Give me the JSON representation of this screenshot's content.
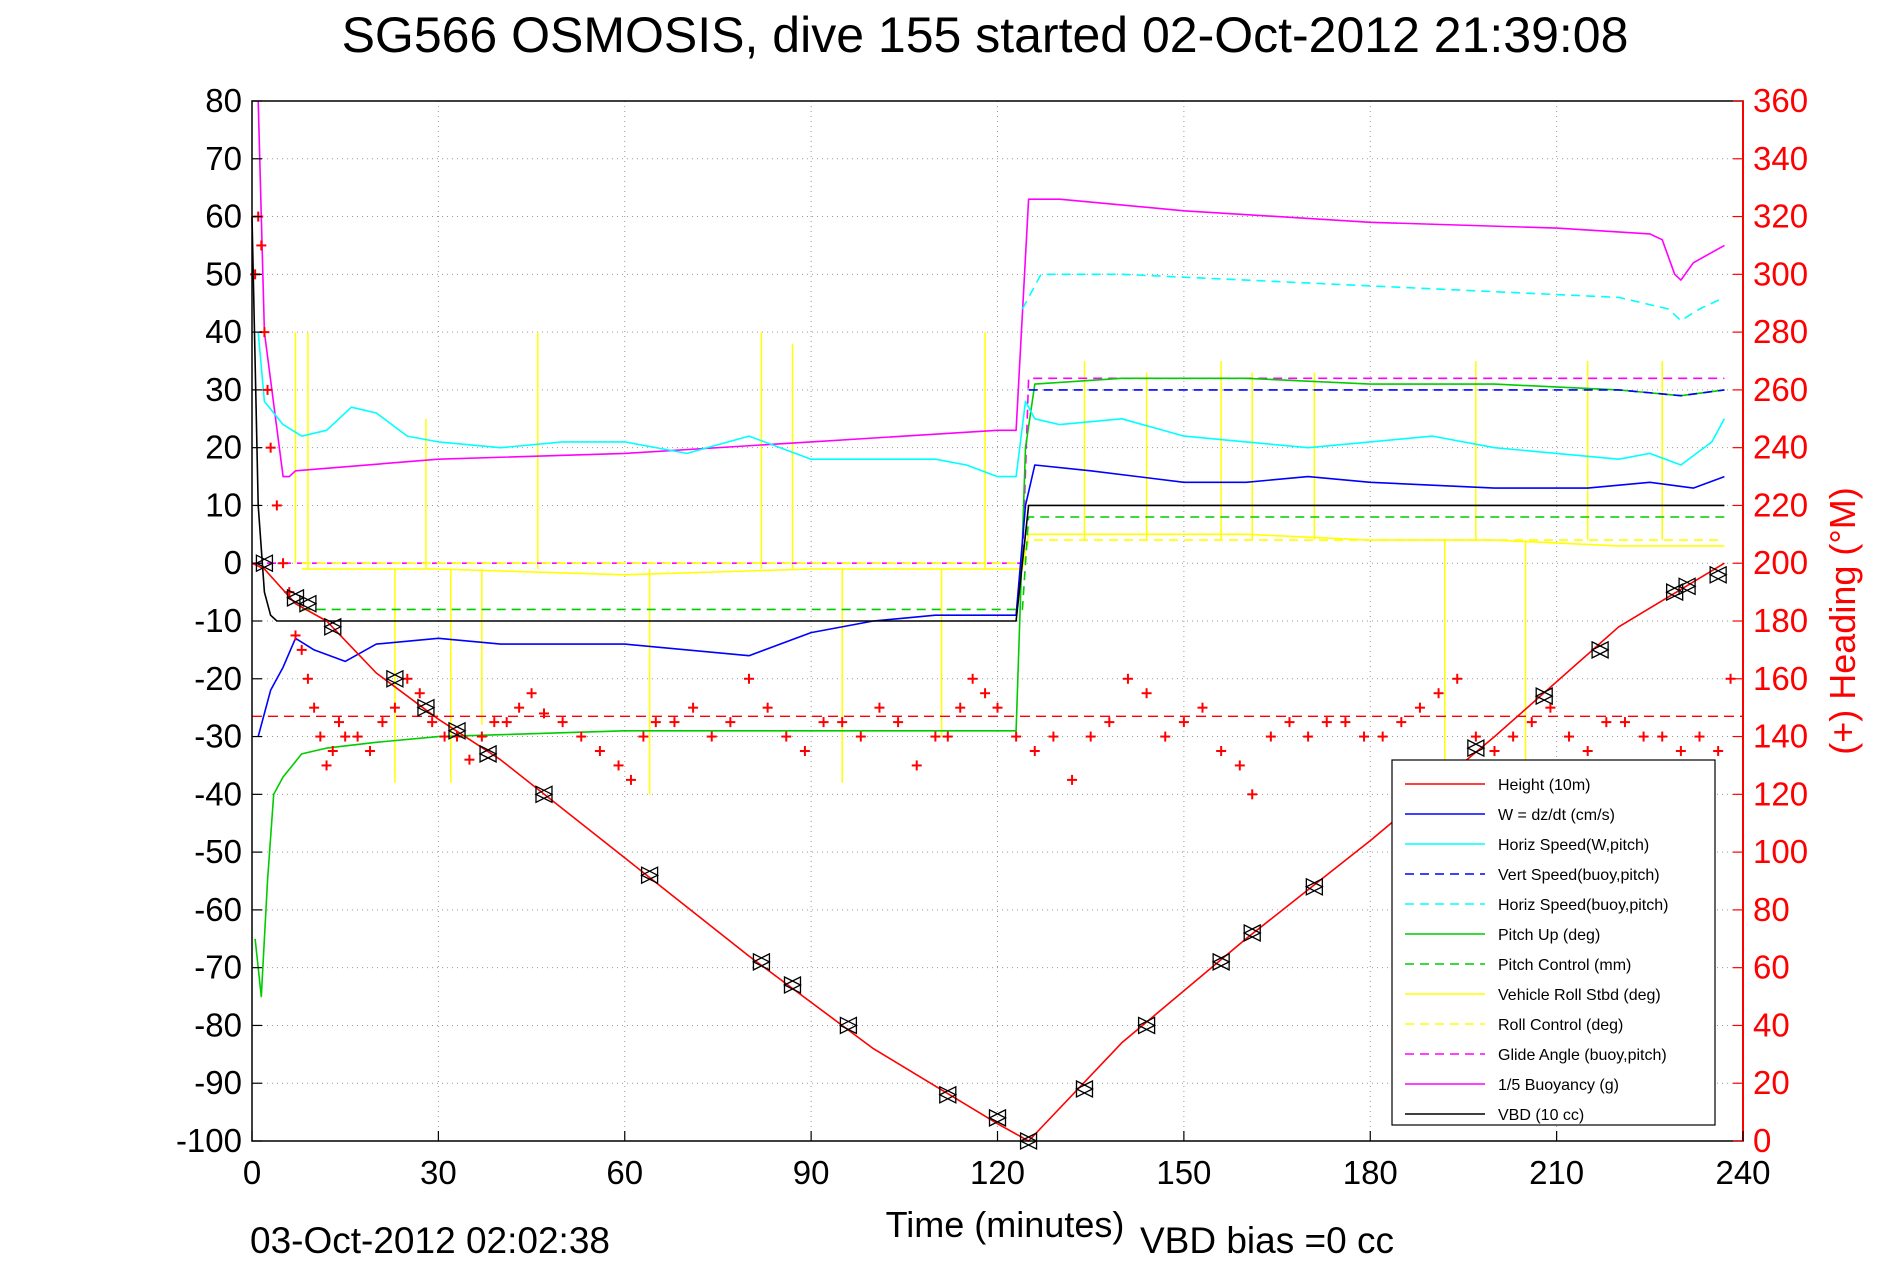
{
  "chart_data": {
    "type": "line",
    "title": "SG566 OSMOSIS, dive 155 started 02-Oct-2012 21:39:08",
    "xlabel": "Time (minutes)",
    "ylabel_right": "(+) Heading (°M)",
    "xlim": [
      0,
      240
    ],
    "ylim": [
      -100,
      80
    ],
    "ylim_right": [
      0,
      360
    ],
    "x_ticks": [
      0,
      30,
      60,
      90,
      120,
      150,
      180,
      210,
      240
    ],
    "y_ticks": [
      -100,
      -90,
      -80,
      -70,
      -60,
      -50,
      -40,
      -30,
      -20,
      -10,
      0,
      10,
      20,
      30,
      40,
      50,
      60,
      70,
      80
    ],
    "y_ticks_right": [
      0,
      20,
      40,
      60,
      80,
      100,
      120,
      140,
      160,
      180,
      200,
      220,
      240,
      260,
      280,
      300,
      320,
      340,
      360
    ],
    "grid": true,
    "legend_position": "lower-right",
    "footer_left": "03-Oct-2012 02:02:38",
    "footer_right": "VBD bias =0 cc",
    "series": [
      {
        "name": "Height (10m)",
        "color": "#ff0000",
        "style": "solid",
        "x": [
          0,
          2,
          7,
          12,
          20,
          30,
          40,
          60,
          80,
          100,
          120,
          125,
          140,
          160,
          180,
          200,
          220,
          237
        ],
        "y": [
          0,
          -1,
          -7,
          -10,
          -19,
          -27,
          -34,
          -51,
          -68,
          -84,
          -97,
          -100,
          -83,
          -65,
          -48,
          -30,
          -11,
          0
        ]
      },
      {
        "name": "W = dz/dt (cm/s)",
        "color": "#0000ff",
        "style": "solid",
        "x": [
          1,
          3,
          5,
          7,
          10,
          15,
          20,
          30,
          40,
          60,
          80,
          90,
          100,
          110,
          120,
          123,
          124.5,
          126,
          135,
          150,
          160,
          170,
          180,
          200,
          215,
          225,
          232,
          237
        ],
        "y": [
          -30,
          -22,
          -18,
          -13,
          -15,
          -17,
          -14,
          -13,
          -14,
          -14,
          -16,
          -12,
          -10,
          -9,
          -9,
          -9,
          10,
          17,
          16,
          14,
          14,
          15,
          14,
          13,
          13,
          14,
          13,
          15
        ]
      },
      {
        "name": "Horiz Speed(W,pitch)",
        "color": "#00ffff",
        "style": "solid",
        "x": [
          1,
          2,
          5,
          8,
          12,
          16,
          20,
          25,
          30,
          40,
          50,
          60,
          70,
          80,
          90,
          100,
          110,
          115,
          120,
          123,
          124.5,
          126,
          130,
          140,
          150,
          160,
          170,
          180,
          190,
          200,
          210,
          220,
          225,
          230,
          235,
          237
        ],
        "y": [
          40,
          28,
          24,
          22,
          23,
          27,
          26,
          22,
          21,
          20,
          21,
          21,
          19,
          22,
          18,
          18,
          18,
          17,
          15,
          15,
          28,
          25,
          24,
          25,
          22,
          21,
          20,
          21,
          22,
          20,
          19,
          18,
          19,
          17,
          21,
          25
        ]
      },
      {
        "name": "Vert Speed(buoy,pitch)",
        "color": "#0000ff",
        "style": "dashed",
        "x": [
          125,
          140,
          160,
          180,
          200,
          220,
          230,
          237
        ],
        "y": [
          30,
          30,
          30,
          30,
          30,
          30,
          29,
          30
        ]
      },
      {
        "name": "Horiz Speed(buoy,pitch)",
        "color": "#00ffff",
        "style": "dashed",
        "x": [
          124,
          127,
          140,
          160,
          180,
          200,
          220,
          228,
          230,
          233,
          237
        ],
        "y": [
          44,
          50,
          50,
          49,
          48,
          47,
          46,
          44,
          42,
          44,
          46
        ]
      },
      {
        "name": "Pitch Up (deg)",
        "color": "#00cc00",
        "style": "solid",
        "x": [
          0.5,
          1.5,
          2.5,
          3.5,
          5,
          8,
          12,
          20,
          30,
          60,
          90,
          110,
          123,
          124.5,
          126,
          140,
          160,
          180,
          200,
          220,
          230,
          237
        ],
        "y": [
          -65,
          -75,
          -55,
          -40,
          -37,
          -33,
          -32,
          -31,
          -30,
          -29,
          -29,
          -29,
          -29,
          20,
          31,
          32,
          32,
          31,
          31,
          30,
          29,
          30
        ]
      },
      {
        "name": "Pitch Control (mm)",
        "color": "#00cc00",
        "style": "dashed",
        "x": [
          8,
          124,
          125,
          237
        ],
        "y": [
          -8,
          -8,
          8,
          8
        ]
      },
      {
        "name": "Vehicle Roll Stbd (deg)",
        "color": "#ffff00",
        "style": "solid",
        "x": [
          8,
          30,
          60,
          90,
          120,
          124,
          125,
          140,
          160,
          180,
          200,
          220,
          237
        ],
        "y": [
          -1,
          -1,
          -2,
          -1,
          -1,
          -1,
          5,
          5,
          5,
          4,
          4,
          3,
          3
        ]
      },
      {
        "name": "Roll Control (deg)",
        "color": "#ffff00",
        "style": "dashed",
        "x": [
          8,
          124,
          125,
          237
        ],
        "y": [
          0,
          0,
          4,
          4
        ]
      },
      {
        "name": "Glide Angle (buoy,pitch)",
        "color": "#ff00ff",
        "style": "dashed",
        "x": [
          0,
          124,
          125,
          237
        ],
        "y": [
          0,
          0,
          32,
          32
        ]
      },
      {
        "name": "1/5 Buoyancy (g)",
        "color": "#ff00ff",
        "style": "solid",
        "x": [
          1,
          2,
          5,
          6,
          7,
          30,
          60,
          90,
          120,
          123,
          125,
          130,
          150,
          180,
          210,
          225,
          227,
          229,
          230,
          232,
          237
        ],
        "y": [
          80,
          40,
          15,
          15,
          16,
          18,
          19,
          21,
          23,
          23,
          63,
          63,
          61,
          59,
          58,
          57,
          56,
          50,
          49,
          52,
          55
        ]
      },
      {
        "name": "VBD (10 cc)",
        "color": "#000000",
        "style": "solid",
        "x": [
          0,
          1,
          2,
          3,
          4,
          10,
          30,
          60,
          90,
          120,
          123,
          125,
          130,
          160,
          200,
          230,
          237
        ],
        "y": [
          60,
          10,
          -5,
          -9,
          -10,
          -10,
          -10,
          -10,
          -10,
          -10,
          -10,
          10,
          10,
          10,
          10,
          10,
          10
        ]
      }
    ],
    "heading_points": {
      "name": "(+) Heading",
      "axis": "right",
      "color": "#ff0000",
      "marker": "+",
      "x": [
        0.5,
        1,
        1.5,
        2,
        2.5,
        3,
        4,
        5,
        6,
        7,
        8,
        9,
        10,
        11,
        12,
        13,
        14,
        15,
        17,
        19,
        21,
        23,
        25,
        27,
        29,
        31,
        33,
        35,
        37,
        39,
        41,
        43,
        45,
        47,
        50,
        53,
        56,
        59,
        61,
        63,
        65,
        68,
        71,
        74,
        77,
        80,
        83,
        86,
        89,
        92,
        95,
        98,
        101,
        104,
        107,
        110,
        112,
        114,
        116,
        118,
        120,
        123,
        126,
        129,
        132,
        135,
        138,
        141,
        144,
        147,
        150,
        153,
        156,
        159,
        161,
        164,
        167,
        170,
        173,
        176,
        179,
        182,
        185,
        188,
        191,
        194,
        197,
        200,
        203,
        206,
        209,
        212,
        215,
        218,
        221,
        224,
        227,
        230,
        233,
        236,
        238
      ],
      "y": [
        300,
        320,
        310,
        280,
        260,
        240,
        220,
        200,
        190,
        175,
        170,
        160,
        150,
        140,
        130,
        135,
        145,
        140,
        140,
        135,
        145,
        150,
        160,
        155,
        145,
        140,
        140,
        132,
        140,
        145,
        145,
        150,
        155,
        148,
        145,
        140,
        135,
        130,
        125,
        140,
        145,
        145,
        150,
        140,
        145,
        160,
        150,
        140,
        135,
        145,
        145,
        140,
        150,
        145,
        130,
        140,
        140,
        150,
        160,
        155,
        150,
        140,
        135,
        140,
        125,
        140,
        145,
        160,
        155,
        140,
        145,
        150,
        135,
        130,
        120,
        140,
        145,
        140,
        145,
        145,
        140,
        140,
        145,
        150,
        155,
        160,
        140,
        135,
        140,
        145,
        150,
        140,
        135,
        145,
        145,
        140,
        140,
        135,
        140,
        135,
        160
      ]
    },
    "heading_mean": {
      "axis": "right",
      "value": 147,
      "color": "#ff0000",
      "style": "dashed"
    },
    "vbd_markers": {
      "marker": "triangle",
      "color": "#000000",
      "x": [
        2,
        7,
        9,
        13,
        23,
        28,
        33,
        38,
        47,
        64,
        82,
        87,
        96,
        112,
        120,
        125,
        134,
        144,
        156,
        161,
        171,
        197,
        208,
        217,
        229,
        231,
        236
      ],
      "y": [
        0,
        -6,
        -7,
        -11,
        -20,
        -25,
        -29,
        -33,
        -40,
        -54,
        -69,
        -73,
        -80,
        -92,
        -96,
        -100,
        -91,
        -80,
        -69,
        -64,
        -56,
        -32,
        -23,
        -15,
        -5,
        -4,
        -2
      ]
    },
    "yellow_spikes": [
      {
        "x": 7,
        "y": 40
      },
      {
        "x": 9,
        "y": 40
      },
      {
        "x": 28,
        "y": 25
      },
      {
        "x": 46,
        "y": 40
      },
      {
        "x": 82,
        "y": 40
      },
      {
        "x": 87,
        "y": 38
      },
      {
        "x": 118,
        "y": 40
      },
      {
        "x": 23,
        "y": -38
      },
      {
        "x": 32,
        "y": -38
      },
      {
        "x": 37,
        "y": -28
      },
      {
        "x": 64,
        "y": -40
      },
      {
        "x": 95,
        "y": -38
      },
      {
        "x": 111,
        "y": -30
      },
      {
        "x": 134,
        "y": 35
      },
      {
        "x": 144,
        "y": 33
      },
      {
        "x": 156,
        "y": 35
      },
      {
        "x": 161,
        "y": 33
      },
      {
        "x": 171,
        "y": 33
      },
      {
        "x": 192,
        "y": -38
      },
      {
        "x": 197,
        "y": 35
      },
      {
        "x": 205,
        "y": -38
      },
      {
        "x": 215,
        "y": 35
      },
      {
        "x": 227,
        "y": 35
      }
    ]
  }
}
